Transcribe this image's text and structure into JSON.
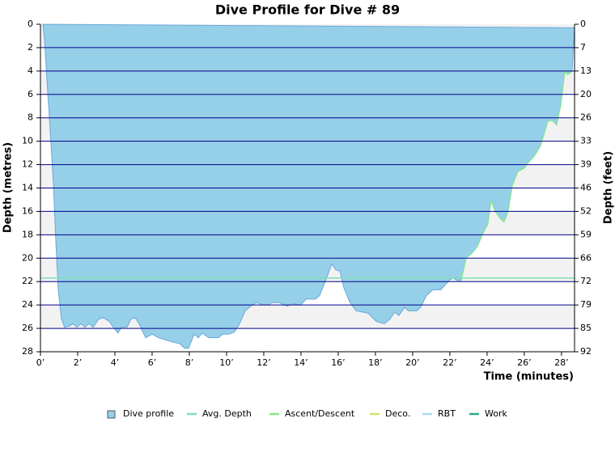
{
  "chart_data": {
    "type": "area",
    "title": "Dive Profile for Dive # 89",
    "y_label": "Depth (metres)",
    "y2_label": "Depth (feet)",
    "x_label": "Time (minutes)",
    "inverted_y": true,
    "grid": true,
    "xlim": [
      0,
      28.7
    ],
    "xticks": [
      {
        "value": 0,
        "label": "0’"
      },
      {
        "value": 2,
        "label": "2’"
      },
      {
        "value": 4,
        "label": "4’"
      },
      {
        "value": 6,
        "label": "6’"
      },
      {
        "value": 8,
        "label": "8’"
      },
      {
        "value": 10,
        "label": "10’"
      },
      {
        "value": 12,
        "label": "12’"
      },
      {
        "value": 14,
        "label": "14’"
      },
      {
        "value": 16,
        "label": "16’"
      },
      {
        "value": 18,
        "label": "18’"
      },
      {
        "value": 20,
        "label": "20’"
      },
      {
        "value": 22,
        "label": "22’"
      },
      {
        "value": 24,
        "label": "24’"
      },
      {
        "value": 26,
        "label": "26’"
      },
      {
        "value": 28,
        "label": "28’"
      }
    ],
    "ylim": [
      0,
      28
    ],
    "yticks": [
      0,
      2,
      4,
      6,
      8,
      10,
      12,
      14,
      16,
      18,
      20,
      22,
      24,
      26,
      28
    ],
    "y2lim": [
      0,
      91.86
    ],
    "y2ticks": [
      {
        "value": 0,
        "label": "0"
      },
      {
        "value": 6.56,
        "label": "7"
      },
      {
        "value": 13.12,
        "label": "13"
      },
      {
        "value": 19.69,
        "label": "20"
      },
      {
        "value": 26.25,
        "label": "26"
      },
      {
        "value": 32.81,
        "label": "33"
      },
      {
        "value": 39.37,
        "label": "39"
      },
      {
        "value": 45.93,
        "label": "46"
      },
      {
        "value": 52.49,
        "label": "52"
      },
      {
        "value": 59.06,
        "label": "59"
      },
      {
        "value": 65.62,
        "label": "66"
      },
      {
        "value": 72.18,
        "label": "72"
      },
      {
        "value": 78.74,
        "label": "79"
      },
      {
        "value": 85.3,
        "label": "85"
      },
      {
        "value": 91.86,
        "label": "92"
      }
    ],
    "series": [
      {
        "name": "Dive profile",
        "color": "#96cfe8",
        "x": [
          0.13,
          0.22,
          0.35,
          0.52,
          0.7,
          0.83,
          0.96,
          1.13,
          1.3,
          1.57,
          1.74,
          1.96,
          2.17,
          2.39,
          2.6,
          2.83,
          3.13,
          3.39,
          3.7,
          3.91,
          4.17,
          4.35,
          4.65,
          4.87,
          5.09,
          5.3,
          5.65,
          6,
          6.35,
          6.74,
          7.17,
          7.48,
          7.74,
          7.96,
          8.26,
          8.48,
          8.7,
          9.04,
          9.57,
          9.78,
          10.13,
          10.43,
          10.7,
          11,
          11.3,
          11.6,
          11.96,
          12.26,
          12.43,
          12.83,
          13.26,
          13.57,
          14,
          14.26,
          14.78,
          15,
          15.35,
          15.65,
          15.87,
          16.09,
          16.3,
          16.6,
          16.96,
          17.61,
          18.04,
          18.48,
          18.78,
          19.04,
          19.26,
          19.57,
          19.78,
          20.22,
          20.43,
          20.74,
          21.09,
          21.52,
          21.96,
          22.17,
          22.39,
          22.61,
          22.87,
          23.17,
          23.48,
          23.74,
          24.04,
          24.22,
          24.43,
          24.7,
          24.91,
          25.13,
          25.35,
          25.65,
          26,
          26.17,
          26.52,
          26.87,
          27.26,
          27.48,
          27.74,
          27.96,
          28.17,
          28.35,
          28.57,
          28.61,
          28.7
        ],
        "values": [
          0,
          1.4,
          4.8,
          9,
          13.8,
          18.7,
          22.8,
          25.2,
          25.9,
          25.8,
          25.6,
          25.9,
          25.6,
          25.9,
          25.6,
          25.9,
          25.2,
          25.1,
          25.4,
          25.9,
          26.4,
          25.9,
          25.9,
          25.2,
          25.1,
          25.6,
          26.8,
          26.5,
          26.8,
          27,
          27.2,
          27.3,
          27.7,
          27.7,
          26.5,
          26.8,
          26.4,
          26.8,
          26.8,
          26.5,
          26.5,
          26.3,
          25.6,
          24.5,
          24.1,
          23.8,
          24,
          24,
          23.8,
          23.8,
          24.1,
          23.9,
          24,
          23.5,
          23.5,
          23.2,
          21.8,
          20.5,
          21,
          21.1,
          22.5,
          23.7,
          24.5,
          24.7,
          25.4,
          25.6,
          25.2,
          24.6,
          24.9,
          24.2,
          24.5,
          24.5,
          24.2,
          23.2,
          22.7,
          22.7,
          21.9,
          21.7,
          21.9,
          21.9,
          20,
          19.6,
          19,
          18,
          17.1,
          15.1,
          16,
          16.6,
          16.9,
          16,
          13.8,
          12.6,
          12.3,
          11.9,
          11.3,
          10.4,
          8.3,
          8.2,
          8.6,
          6.9,
          4.1,
          4.3,
          4,
          2.8,
          0.3
        ]
      },
      {
        "name": "Avg. Depth",
        "color": "#7fe0b4",
        "value": 21.7
      },
      {
        "name": "Ascent/Descent",
        "color": "#88e888",
        "x": [
          22.61,
          22.87,
          23.17,
          23.48,
          23.74,
          24.04,
          24.22,
          24.43,
          24.7,
          24.91,
          25.13,
          25.35,
          25.65,
          26,
          26.17,
          26.52,
          26.87,
          27.26,
          27.48,
          27.74,
          27.96,
          28.17,
          28.35,
          28.57
        ],
        "values": [
          21.9,
          20,
          19.6,
          19,
          18,
          17.1,
          15.1,
          16,
          16.6,
          16.9,
          16,
          13.8,
          12.6,
          12.3,
          11.9,
          11.3,
          10.4,
          8.3,
          8.2,
          8.6,
          6.9,
          4.1,
          4.3,
          4
        ]
      },
      {
        "name": "Deco.",
        "color": "#d4e06a",
        "x": [],
        "values": []
      },
      {
        "name": "RBT",
        "color": "#a6dcf2",
        "x": [],
        "values": []
      },
      {
        "name": "Work",
        "color": "#2aa88a",
        "x": [],
        "values": []
      }
    ]
  }
}
